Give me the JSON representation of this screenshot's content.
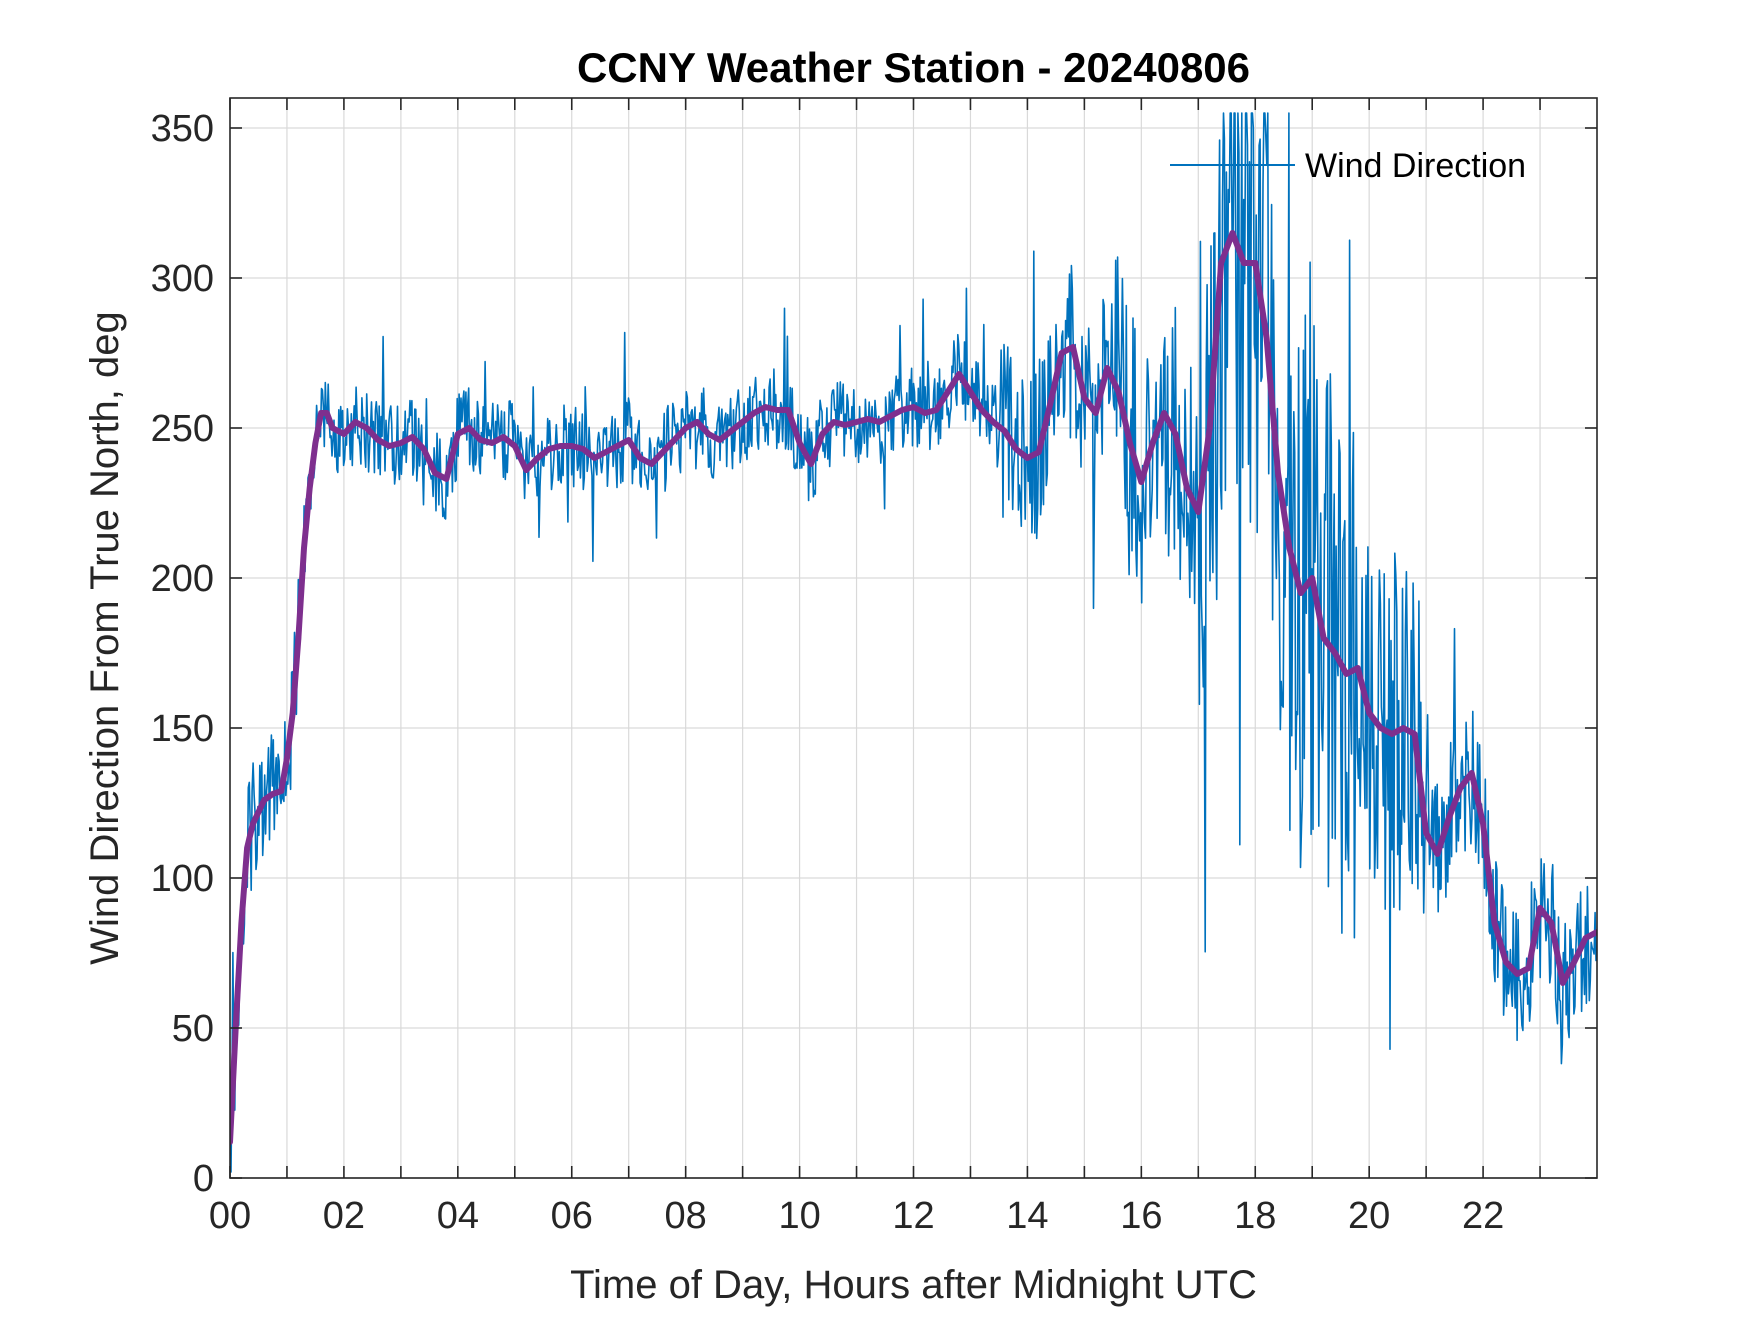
{
  "chart_data": {
    "type": "line",
    "title": "CCNY Weather Station - 20240806",
    "xlabel": "Time of Day, Hours after Midnight UTC",
    "ylabel": "Wind Direction From True North, deg",
    "xlim": [
      0,
      24
    ],
    "ylim": [
      0,
      360
    ],
    "grid": true,
    "legend_location": "top-right",
    "x_ticks": [
      0,
      2,
      4,
      6,
      8,
      10,
      12,
      14,
      16,
      18,
      20,
      22
    ],
    "x_tick_labels": [
      "00",
      "02",
      "04",
      "06",
      "08",
      "10",
      "12",
      "14",
      "16",
      "18",
      "20",
      "22"
    ],
    "y_ticks": [
      0,
      50,
      100,
      150,
      200,
      250,
      300,
      350
    ],
    "y_tick_labels": [
      "0",
      "50",
      "100",
      "150",
      "200",
      "250",
      "300",
      "350"
    ],
    "series": [
      {
        "name": "Wind Direction",
        "color": "#0072BD",
        "style": "thin-raw",
        "spread_note": "noisy 1-min samples around the smoothed trend",
        "x": [
          0.0,
          0.1,
          0.2,
          0.3,
          0.4,
          0.5,
          0.6,
          0.75,
          0.9,
          1.0,
          1.1,
          1.2,
          1.3,
          1.4,
          1.5,
          1.6,
          1.7,
          1.8,
          2.0,
          2.2,
          2.4,
          2.6,
          2.8,
          3.0,
          3.2,
          3.4,
          3.6,
          3.8,
          4.0,
          4.2,
          4.4,
          4.6,
          4.8,
          5.0,
          5.2,
          5.4,
          5.6,
          5.8,
          6.0,
          6.2,
          6.4,
          6.6,
          6.8,
          7.0,
          7.2,
          7.4,
          7.6,
          7.8,
          8.0,
          8.2,
          8.4,
          8.6,
          8.8,
          9.0,
          9.2,
          9.4,
          9.6,
          9.8,
          10.0,
          10.2,
          10.4,
          10.6,
          10.8,
          11.0,
          11.2,
          11.4,
          11.6,
          11.8,
          12.0,
          12.2,
          12.4,
          12.6,
          12.8,
          13.0,
          13.2,
          13.4,
          13.6,
          13.8,
          14.0,
          14.2,
          14.4,
          14.6,
          14.8,
          15.0,
          15.2,
          15.4,
          15.6,
          15.8,
          16.0,
          16.2,
          16.4,
          16.6,
          16.8,
          17.0,
          17.2,
          17.4,
          17.6,
          17.8,
          18.0,
          18.2,
          18.4,
          18.6,
          18.8,
          19.0,
          19.2,
          19.4,
          19.6,
          19.8,
          20.0,
          20.2,
          20.4,
          20.6,
          20.8,
          21.0,
          21.2,
          21.4,
          21.6,
          21.8,
          22.0,
          22.2,
          22.4,
          22.6,
          22.8,
          23.0,
          23.2,
          23.4,
          23.6,
          23.8,
          24.0
        ],
        "y": [
          12,
          50,
          85,
          110,
          118,
          122,
          126,
          128,
          129,
          140,
          155,
          180,
          210,
          230,
          245,
          255,
          255,
          250,
          248,
          252,
          250,
          246,
          244,
          245,
          247,
          243,
          235,
          233,
          248,
          250,
          246,
          245,
          247,
          244,
          236,
          240,
          243,
          244,
          244,
          243,
          240,
          242,
          244,
          246,
          240,
          238,
          242,
          246,
          250,
          252,
          248,
          246,
          249,
          252,
          255,
          257,
          256,
          256,
          245,
          238,
          248,
          252,
          251,
          252,
          253,
          252,
          254,
          256,
          257,
          255,
          256,
          262,
          268,
          262,
          256,
          252,
          249,
          243,
          240,
          242,
          258,
          275,
          277,
          260,
          255,
          270,
          262,
          245,
          232,
          245,
          255,
          248,
          230,
          222,
          250,
          305,
          315,
          305,
          305,
          280,
          235,
          210,
          195,
          200,
          180,
          175,
          168,
          170,
          155,
          150,
          148,
          150,
          148,
          115,
          108,
          120,
          130,
          135,
          118,
          85,
          72,
          68,
          70,
          90,
          85,
          65,
          72,
          80,
          82
        ]
      },
      {
        "name": "",
        "color": "#7E2F8E",
        "style": "thick-smoothed",
        "x": [
          0.0,
          0.1,
          0.2,
          0.3,
          0.4,
          0.5,
          0.6,
          0.75,
          0.9,
          1.0,
          1.1,
          1.2,
          1.3,
          1.4,
          1.5,
          1.6,
          1.7,
          1.8,
          2.0,
          2.2,
          2.4,
          2.6,
          2.8,
          3.0,
          3.2,
          3.4,
          3.6,
          3.8,
          4.0,
          4.2,
          4.4,
          4.6,
          4.8,
          5.0,
          5.2,
          5.4,
          5.6,
          5.8,
          6.0,
          6.2,
          6.4,
          6.6,
          6.8,
          7.0,
          7.2,
          7.4,
          7.6,
          7.8,
          8.0,
          8.2,
          8.4,
          8.6,
          8.8,
          9.0,
          9.2,
          9.4,
          9.6,
          9.8,
          10.0,
          10.2,
          10.4,
          10.6,
          10.8,
          11.0,
          11.2,
          11.4,
          11.6,
          11.8,
          12.0,
          12.2,
          12.4,
          12.6,
          12.8,
          13.0,
          13.2,
          13.4,
          13.6,
          13.8,
          14.0,
          14.2,
          14.4,
          14.6,
          14.8,
          15.0,
          15.2,
          15.4,
          15.6,
          15.8,
          16.0,
          16.2,
          16.4,
          16.6,
          16.8,
          17.0,
          17.2,
          17.4,
          17.6,
          17.8,
          18.0,
          18.2,
          18.4,
          18.6,
          18.8,
          19.0,
          19.2,
          19.4,
          19.6,
          19.8,
          20.0,
          20.2,
          20.4,
          20.6,
          20.8,
          21.0,
          21.2,
          21.4,
          21.6,
          21.8,
          22.0,
          22.2,
          22.4,
          22.6,
          22.8,
          23.0,
          23.2,
          23.4,
          23.6,
          23.8,
          24.0
        ],
        "y": [
          12,
          50,
          85,
          110,
          118,
          122,
          126,
          128,
          129,
          140,
          155,
          180,
          210,
          230,
          245,
          255,
          255,
          250,
          248,
          252,
          250,
          246,
          244,
          245,
          247,
          243,
          235,
          233,
          248,
          250,
          246,
          245,
          247,
          244,
          236,
          240,
          243,
          244,
          244,
          243,
          240,
          242,
          244,
          246,
          240,
          238,
          242,
          246,
          250,
          252,
          248,
          246,
          249,
          252,
          255,
          257,
          256,
          256,
          245,
          238,
          248,
          252,
          251,
          252,
          253,
          252,
          254,
          256,
          257,
          255,
          256,
          262,
          268,
          262,
          256,
          252,
          249,
          243,
          240,
          242,
          258,
          275,
          277,
          260,
          255,
          270,
          262,
          245,
          232,
          245,
          255,
          248,
          230,
          222,
          250,
          305,
          315,
          305,
          305,
          280,
          235,
          210,
          195,
          200,
          180,
          175,
          168,
          170,
          155,
          150,
          148,
          150,
          148,
          115,
          108,
          120,
          130,
          135,
          118,
          85,
          72,
          68,
          70,
          90,
          85,
          65,
          72,
          80,
          82
        ]
      }
    ]
  }
}
